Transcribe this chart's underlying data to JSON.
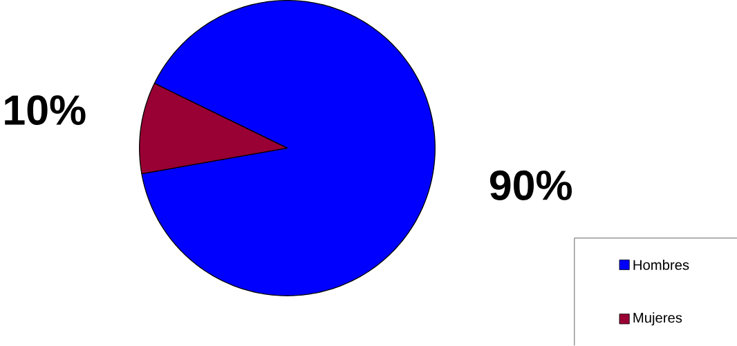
{
  "chart_data": {
    "type": "pie",
    "categories": [
      "Hombres",
      "Mujeres"
    ],
    "values": [
      90,
      10
    ],
    "colors": [
      "#0000ff",
      "#990033"
    ],
    "value_labels": [
      "90%",
      "10%"
    ],
    "legend": "bottom right"
  }
}
